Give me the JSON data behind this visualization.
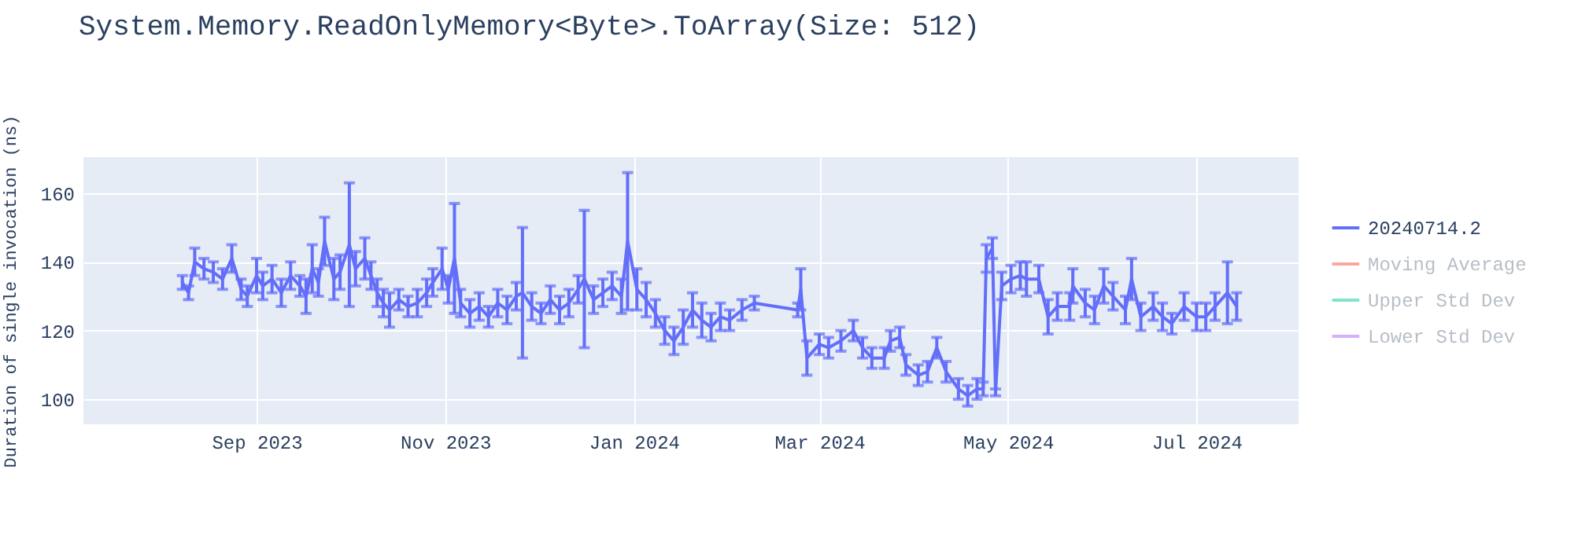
{
  "chart_data": {
    "type": "line",
    "title": "System.Memory.ReadOnlyMemory<Byte>.ToArray(Size: 512)",
    "ylabel": "Duration of single invocation (ns)",
    "x": [
      "2023-08-08",
      "2023-08-10",
      "2023-08-12",
      "2023-08-15",
      "2023-08-18",
      "2023-08-21",
      "2023-08-24",
      "2023-08-27",
      "2023-08-29",
      "2023-09-01",
      "2023-09-03",
      "2023-09-06",
      "2023-09-09",
      "2023-09-12",
      "2023-09-15",
      "2023-09-17",
      "2023-09-19",
      "2023-09-21",
      "2023-09-23",
      "2023-09-26",
      "2023-09-28",
      "2023-10-01",
      "2023-10-03",
      "2023-10-06",
      "2023-10-08",
      "2023-10-10",
      "2023-10-12",
      "2023-10-14",
      "2023-10-17",
      "2023-10-20",
      "2023-10-23",
      "2023-10-26",
      "2023-10-28",
      "2023-10-31",
      "2023-11-02",
      "2023-11-04",
      "2023-11-06",
      "2023-11-09",
      "2023-11-12",
      "2023-11-15",
      "2023-11-18",
      "2023-11-21",
      "2023-11-24",
      "2023-11-26",
      "2023-11-29",
      "2023-12-02",
      "2023-12-05",
      "2023-12-08",
      "2023-12-11",
      "2023-12-14",
      "2023-12-16",
      "2023-12-19",
      "2023-12-22",
      "2023-12-25",
      "2023-12-28",
      "2023-12-30",
      "2024-01-02",
      "2024-01-05",
      "2024-01-08",
      "2024-01-11",
      "2024-01-14",
      "2024-01-17",
      "2024-01-20",
      "2024-01-23",
      "2024-01-26",
      "2024-01-29",
      "2024-02-01",
      "2024-02-05",
      "2024-02-09",
      "2024-02-23",
      "2024-02-24",
      "2024-02-26",
      "2024-03-01",
      "2024-03-04",
      "2024-03-08",
      "2024-03-12",
      "2024-03-15",
      "2024-03-18",
      "2024-03-22",
      "2024-03-24",
      "2024-03-27",
      "2024-03-29",
      "2024-04-02",
      "2024-04-05",
      "2024-04-08",
      "2024-04-11",
      "2024-04-15",
      "2024-04-18",
      "2024-04-21",
      "2024-04-23",
      "2024-04-24",
      "2024-04-26",
      "2024-04-27",
      "2024-04-29",
      "2024-05-02",
      "2024-05-05",
      "2024-05-07",
      "2024-05-11",
      "2024-05-14",
      "2024-05-17",
      "2024-05-21",
      "2024-05-22",
      "2024-05-26",
      "2024-05-29",
      "2024-06-01",
      "2024-06-04",
      "2024-06-08",
      "2024-06-10",
      "2024-06-13",
      "2024-06-17",
      "2024-06-20",
      "2024-06-23",
      "2024-06-27",
      "2024-07-01",
      "2024-07-04",
      "2024-07-07",
      "2024-07-11",
      "2024-07-14"
    ],
    "series": [
      {
        "name": "20240714.2",
        "color": "#636efa",
        "values": [
          134,
          131,
          140,
          138,
          137,
          135,
          141,
          132,
          130,
          136,
          133,
          135,
          131,
          136,
          133,
          130,
          138,
          134,
          146,
          135,
          137,
          145,
          138,
          141,
          136,
          131,
          128,
          126,
          129,
          127,
          128,
          131,
          134,
          138,
          132,
          141,
          128,
          125,
          127,
          124,
          128,
          126,
          130,
          131,
          127,
          125,
          129,
          126,
          128,
          132,
          135,
          129,
          131,
          133,
          130,
          146,
          132,
          129,
          125,
          120,
          117,
          121,
          126,
          123,
          121,
          124,
          123,
          126,
          128,
          126,
          132,
          112,
          116,
          115,
          117,
          120,
          115,
          112,
          112,
          117,
          118,
          110,
          107,
          108,
          115,
          108,
          103,
          101,
          103,
          103,
          141,
          144,
          102,
          133,
          135,
          136,
          135,
          135,
          124,
          127,
          127,
          133,
          128,
          126,
          133,
          130,
          126,
          135,
          124,
          127,
          124,
          122,
          127,
          124,
          124,
          127,
          131,
          127
        ],
        "errors": [
          2,
          2,
          4,
          3,
          3,
          3,
          4,
          3,
          3,
          5,
          4,
          4,
          4,
          4,
          3,
          5,
          7,
          4,
          7,
          6,
          5,
          18,
          5,
          6,
          4,
          4,
          4,
          5,
          3,
          3,
          4,
          4,
          4,
          6,
          4,
          16,
          4,
          4,
          4,
          3,
          4,
          4,
          4,
          19,
          4,
          3,
          4,
          4,
          4,
          4,
          20,
          4,
          4,
          4,
          5,
          20,
          6,
          5,
          4,
          4,
          4,
          5,
          5,
          5,
          4,
          4,
          3,
          3,
          2,
          2,
          6,
          5,
          3,
          3,
          3,
          3,
          3,
          3,
          3,
          3,
          3,
          3,
          3,
          3,
          3,
          3,
          3,
          3,
          3,
          2,
          4,
          3,
          1,
          4,
          4,
          4,
          5,
          4,
          5,
          4,
          4,
          5,
          4,
          4,
          5,
          4,
          4,
          6,
          4,
          4,
          4,
          3,
          4,
          4,
          4,
          4,
          9,
          4
        ]
      },
      {
        "name": "Moving Average",
        "color": "#ef553b",
        "values": [
          null,
          null,
          null,
          null,
          null,
          null,
          null,
          null,
          null,
          null,
          null,
          null,
          null,
          null,
          null,
          null,
          null,
          null,
          null,
          null,
          null,
          null,
          null,
          null,
          null,
          null,
          null,
          null,
          null,
          null,
          null,
          null,
          null,
          null,
          null,
          null,
          null,
          null,
          null,
          null,
          null,
          null,
          null,
          null,
          null,
          null,
          null,
          null,
          null,
          null,
          null,
          null,
          null,
          null,
          null,
          null,
          null,
          null,
          null,
          null,
          null,
          null,
          null,
          null,
          null,
          null,
          null,
          null,
          null,
          null,
          null,
          null,
          null,
          null,
          null,
          null,
          null,
          null,
          null,
          null,
          null,
          null,
          null,
          null,
          null,
          null,
          null,
          null,
          null,
          null,
          null,
          null,
          null,
          null,
          null,
          null,
          null,
          null,
          null,
          null,
          null,
          null,
          null,
          null,
          null,
          null,
          null,
          null,
          null,
          null,
          null,
          null,
          null,
          null,
          null,
          null,
          null,
          null
        ]
      },
      {
        "name": "Upper Std Dev",
        "color": "#00cc96",
        "values": [
          null,
          null,
          null,
          null,
          null,
          null,
          null,
          null,
          null,
          null,
          null,
          null,
          null,
          null,
          null,
          null,
          null,
          null,
          null,
          null,
          null,
          null,
          null,
          null,
          null,
          null,
          null,
          null,
          null,
          null,
          null,
          null,
          null,
          null,
          null,
          null,
          null,
          null,
          null,
          null,
          null,
          null,
          null,
          null,
          null,
          null,
          null,
          null,
          null,
          null,
          null,
          null,
          null,
          null,
          null,
          null,
          null,
          null,
          null,
          null,
          null,
          null,
          null,
          null,
          null,
          null,
          null,
          null,
          null,
          null,
          null,
          null,
          null,
          null,
          null,
          null,
          null,
          null,
          null,
          null,
          null,
          null,
          null,
          null,
          null,
          null,
          null,
          null,
          null,
          null,
          null,
          null,
          null,
          null,
          null,
          null,
          null,
          null,
          null,
          null,
          null,
          null,
          null,
          null,
          null,
          null,
          null,
          null,
          null,
          null,
          null,
          null,
          null,
          null,
          null,
          null,
          null,
          null
        ]
      },
      {
        "name": "Lower Std Dev",
        "color": "#ab63fa",
        "values": [
          null,
          null,
          null,
          null,
          null,
          null,
          null,
          null,
          null,
          null,
          null,
          null,
          null,
          null,
          null,
          null,
          null,
          null,
          null,
          null,
          null,
          null,
          null,
          null,
          null,
          null,
          null,
          null,
          null,
          null,
          null,
          null,
          null,
          null,
          null,
          null,
          null,
          null,
          null,
          null,
          null,
          null,
          null,
          null,
          null,
          null,
          null,
          null,
          null,
          null,
          null,
          null,
          null,
          null,
          null,
          null,
          null,
          null,
          null,
          null,
          null,
          null,
          null,
          null,
          null,
          null,
          null,
          null,
          null,
          null,
          null,
          null,
          null,
          null,
          null,
          null,
          null,
          null,
          null,
          null,
          null,
          null,
          null,
          null,
          null,
          null,
          null,
          null,
          null,
          null,
          null,
          null,
          null,
          null,
          null,
          null,
          null,
          null,
          null,
          null,
          null,
          null,
          null,
          null,
          null,
          null,
          null,
          null,
          null,
          null,
          null,
          null,
          null,
          null,
          null,
          null,
          null,
          null
        ]
      }
    ],
    "xlim": [
      "2023-07-07",
      "2024-08-03"
    ],
    "xticks": [
      {
        "value": "2023-09-01",
        "label": "Sep 2023"
      },
      {
        "value": "2023-11-01",
        "label": "Nov 2023"
      },
      {
        "value": "2024-01-01",
        "label": "Jan 2024"
      },
      {
        "value": "2024-03-01",
        "label": "Mar 2024"
      },
      {
        "value": "2024-05-01",
        "label": "May 2024"
      },
      {
        "value": "2024-07-01",
        "label": "Jul 2024"
      }
    ],
    "ylim": [
      92.7,
      170.5
    ],
    "yticks": [
      100,
      120,
      140,
      160
    ],
    "grid": true,
    "legend": "top right",
    "marker": "none",
    "line_style": "solid"
  }
}
